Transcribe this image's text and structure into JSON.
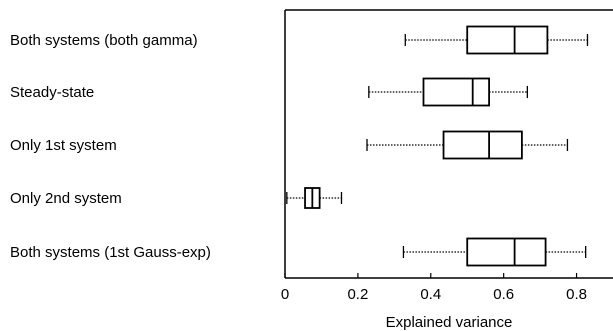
{
  "chart_data": {
    "type": "boxplot",
    "orientation": "horizontal",
    "xlabel": "Explained variance",
    "ylabel": "",
    "xlim": [
      0,
      0.9
    ],
    "xticks": [
      0,
      0.2,
      0.4,
      0.6,
      0.8
    ],
    "xtick_labels": [
      "0",
      "0.2",
      "0.4",
      "0.6",
      "0.8"
    ],
    "grid": false,
    "categories": [
      "Both systems (both gamma)",
      "Steady-state",
      "Only 1st system",
      "Only 2nd system",
      "Both systems (1st Gauss-exp)"
    ],
    "boxes": [
      {
        "whisker_low": 0.33,
        "q1": 0.5,
        "median": 0.63,
        "q3": 0.72,
        "whisker_high": 0.83
      },
      {
        "whisker_low": 0.23,
        "q1": 0.38,
        "median": 0.515,
        "q3": 0.56,
        "whisker_high": 0.665
      },
      {
        "whisker_low": 0.225,
        "q1": 0.435,
        "median": 0.56,
        "q3": 0.65,
        "whisker_high": 0.775
      },
      {
        "whisker_low": 0.005,
        "q1": 0.055,
        "median": 0.075,
        "q3": 0.095,
        "whisker_high": 0.155
      },
      {
        "whisker_low": 0.325,
        "q1": 0.5,
        "median": 0.63,
        "q3": 0.715,
        "whisker_high": 0.825
      }
    ]
  }
}
